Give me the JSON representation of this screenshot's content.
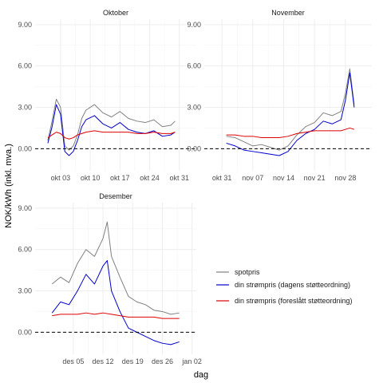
{
  "chart_data": {
    "type": "line",
    "xlabel": "dag",
    "ylabel": "NOK/kWh (inkl. mva.)",
    "hline": 0,
    "y_ticks": [
      0,
      3,
      6,
      9
    ],
    "y_tick_labels": [
      "0.00",
      "3.00",
      "6.00",
      "9.00"
    ],
    "ylim": [
      -1.6,
      9.4
    ],
    "colors": {
      "spotpris": "#808080",
      "din_strompris_dagens": "#0000cd",
      "din_strompris_foreslatt": "#dd0000"
    },
    "legend": {
      "position": "right",
      "entries": [
        {
          "label": "spotpris",
          "series": "spotpris"
        },
        {
          "label": "din strømpris (dagens støtteordning)",
          "series": "din_strompris_dagens"
        },
        {
          "label": "din strømpris (foreslått støtteordning)",
          "series": "din_strompris_foreslatt"
        }
      ]
    },
    "panels": [
      {
        "title": "Oktober",
        "x_range": [
          -3,
          35
        ],
        "x_ticks": [
          3,
          10,
          17,
          24,
          31
        ],
        "x_tick_labels": [
          "okt 03",
          "okt 10",
          "okt 17",
          "okt 24",
          "okt 31"
        ],
        "day_offset": 1,
        "series": [
          {
            "key": "spotpris",
            "points": [
              [
                1,
                0.6
              ],
              [
                2,
                2.0
              ],
              [
                3,
                3.6
              ],
              [
                4,
                3.0
              ],
              [
                5,
                0.2
              ],
              [
                6,
                -0.1
              ],
              [
                7,
                0.2
              ],
              [
                8,
                1.0
              ],
              [
                9,
                2.2
              ],
              [
                10,
                2.8
              ],
              [
                12,
                3.2
              ],
              [
                14,
                2.6
              ],
              [
                16,
                2.3
              ],
              [
                18,
                2.7
              ],
              [
                20,
                2.2
              ],
              [
                22,
                2.0
              ],
              [
                24,
                1.9
              ],
              [
                26,
                2.1
              ],
              [
                28,
                1.6
              ],
              [
                30,
                1.7
              ],
              [
                31,
                2.0
              ]
            ]
          },
          {
            "key": "din_strompris_dagens",
            "points": [
              [
                1,
                0.4
              ],
              [
                2,
                1.6
              ],
              [
                3,
                3.2
              ],
              [
                4,
                2.5
              ],
              [
                5,
                -0.2
              ],
              [
                6,
                -0.5
              ],
              [
                7,
                -0.2
              ],
              [
                8,
                0.6
              ],
              [
                9,
                1.6
              ],
              [
                10,
                2.1
              ],
              [
                12,
                2.4
              ],
              [
                14,
                1.8
              ],
              [
                16,
                1.5
              ],
              [
                18,
                1.9
              ],
              [
                20,
                1.4
              ],
              [
                22,
                1.2
              ],
              [
                24,
                1.1
              ],
              [
                26,
                1.3
              ],
              [
                28,
                0.9
              ],
              [
                30,
                1.0
              ],
              [
                31,
                1.2
              ]
            ]
          },
          {
            "key": "din_strompris_foreslatt",
            "points": [
              [
                1,
                0.8
              ],
              [
                2,
                1.0
              ],
              [
                3,
                1.2
              ],
              [
                4,
                1.1
              ],
              [
                5,
                0.8
              ],
              [
                6,
                0.7
              ],
              [
                7,
                0.8
              ],
              [
                8,
                1.0
              ],
              [
                9,
                1.1
              ],
              [
                10,
                1.2
              ],
              [
                12,
                1.3
              ],
              [
                14,
                1.2
              ],
              [
                16,
                1.2
              ],
              [
                18,
                1.2
              ],
              [
                20,
                1.2
              ],
              [
                22,
                1.1
              ],
              [
                24,
                1.1
              ],
              [
                26,
                1.2
              ],
              [
                28,
                1.1
              ],
              [
                30,
                1.1
              ],
              [
                31,
                1.2
              ]
            ]
          }
        ]
      },
      {
        "title": "November",
        "x_range": [
          -4,
          34
        ],
        "x_ticks": [
          0,
          7,
          14,
          21,
          28
        ],
        "x_tick_labels": [
          "okt 31",
          "nov 07",
          "nov 14",
          "nov 21",
          "nov 28"
        ],
        "day_offset": 0,
        "series": [
          {
            "key": "spotpris",
            "points": [
              [
                1,
                0.9
              ],
              [
                3,
                0.8
              ],
              [
                5,
                0.5
              ],
              [
                7,
                0.2
              ],
              [
                9,
                0.3
              ],
              [
                11,
                0.1
              ],
              [
                13,
                -0.1
              ],
              [
                15,
                0.2
              ],
              [
                17,
                1.0
              ],
              [
                19,
                1.6
              ],
              [
                21,
                1.9
              ],
              [
                23,
                2.6
              ],
              [
                25,
                2.4
              ],
              [
                27,
                2.7
              ],
              [
                28,
                4.0
              ],
              [
                29,
                5.8
              ],
              [
                30,
                3.2
              ]
            ]
          },
          {
            "key": "din_strompris_dagens",
            "points": [
              [
                1,
                0.4
              ],
              [
                3,
                0.2
              ],
              [
                5,
                -0.1
              ],
              [
                7,
                -0.2
              ],
              [
                9,
                -0.3
              ],
              [
                11,
                -0.4
              ],
              [
                13,
                -0.5
              ],
              [
                15,
                -0.2
              ],
              [
                17,
                0.6
              ],
              [
                19,
                1.1
              ],
              [
                21,
                1.4
              ],
              [
                23,
                2.0
              ],
              [
                25,
                1.8
              ],
              [
                27,
                2.1
              ],
              [
                28,
                3.5
              ],
              [
                29,
                5.5
              ],
              [
                30,
                3.0
              ]
            ]
          },
          {
            "key": "din_strompris_foreslatt",
            "points": [
              [
                1,
                1.0
              ],
              [
                3,
                1.0
              ],
              [
                5,
                0.9
              ],
              [
                7,
                0.9
              ],
              [
                9,
                0.8
              ],
              [
                11,
                0.8
              ],
              [
                13,
                0.8
              ],
              [
                15,
                0.9
              ],
              [
                17,
                1.1
              ],
              [
                19,
                1.2
              ],
              [
                21,
                1.3
              ],
              [
                23,
                1.3
              ],
              [
                25,
                1.3
              ],
              [
                27,
                1.3
              ],
              [
                28,
                1.4
              ],
              [
                29,
                1.5
              ],
              [
                30,
                1.4
              ]
            ]
          }
        ]
      },
      {
        "title": "Desember",
        "x_range": [
          -4,
          34
        ],
        "x_ticks": [
          5,
          12,
          19,
          26,
          33
        ],
        "x_tick_labels": [
          "des 05",
          "des 12",
          "des 19",
          "des 26",
          "jan 02"
        ],
        "day_offset": 1,
        "series": [
          {
            "key": "spotpris",
            "points": [
              [
                1,
                3.5
              ],
              [
                3,
                4.0
              ],
              [
                5,
                3.6
              ],
              [
                7,
                5.0
              ],
              [
                9,
                6.0
              ],
              [
                11,
                5.5
              ],
              [
                13,
                6.8
              ],
              [
                14,
                8.0
              ],
              [
                15,
                5.5
              ],
              [
                17,
                4.0
              ],
              [
                19,
                2.6
              ],
              [
                21,
                2.2
              ],
              [
                23,
                2.0
              ],
              [
                25,
                1.6
              ],
              [
                27,
                1.5
              ],
              [
                29,
                1.3
              ],
              [
                31,
                1.4
              ]
            ]
          },
          {
            "key": "din_strompris_dagens",
            "points": [
              [
                1,
                1.4
              ],
              [
                3,
                2.2
              ],
              [
                5,
                2.0
              ],
              [
                7,
                3.0
              ],
              [
                9,
                4.2
              ],
              [
                11,
                3.5
              ],
              [
                13,
                4.8
              ],
              [
                14,
                5.2
              ],
              [
                15,
                3.0
              ],
              [
                17,
                1.5
              ],
              [
                19,
                0.3
              ],
              [
                21,
                0.0
              ],
              [
                23,
                -0.3
              ],
              [
                25,
                -0.6
              ],
              [
                27,
                -0.8
              ],
              [
                29,
                -0.9
              ],
              [
                31,
                -0.7
              ]
            ]
          },
          {
            "key": "din_strompris_foreslatt",
            "points": [
              [
                1,
                1.2
              ],
              [
                3,
                1.3
              ],
              [
                5,
                1.3
              ],
              [
                7,
                1.3
              ],
              [
                9,
                1.4
              ],
              [
                11,
                1.3
              ],
              [
                13,
                1.4
              ],
              [
                15,
                1.3
              ],
              [
                17,
                1.2
              ],
              [
                19,
                1.1
              ],
              [
                21,
                1.1
              ],
              [
                23,
                1.1
              ],
              [
                25,
                1.1
              ],
              [
                27,
                1.0
              ],
              [
                29,
                1.0
              ],
              [
                31,
                1.0
              ]
            ]
          }
        ]
      }
    ]
  }
}
